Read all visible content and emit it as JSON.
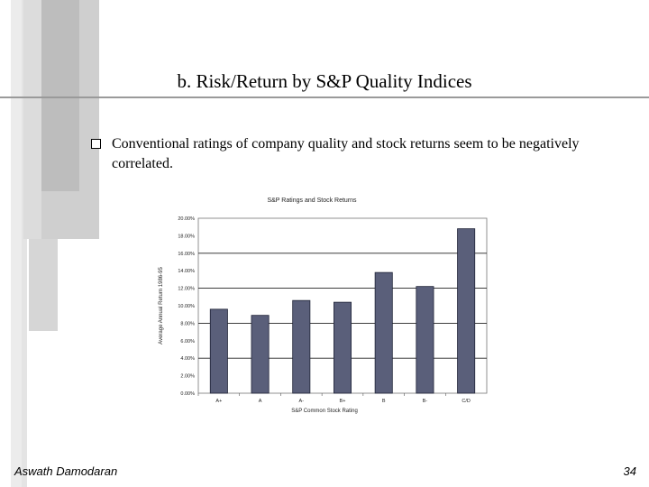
{
  "slide": {
    "title": "b. Risk/Return by S&P Quality Indices",
    "bullet": "Conventional ratings of company quality and stock returns seem to be negatively correlated.",
    "footer_author": "Aswath Damodaran",
    "page_number": "34"
  },
  "chart_data": {
    "type": "bar",
    "title": "S&P Ratings and Stock Returns",
    "xlabel": "S&P Common Stock Rating",
    "ylabel": "Average Annual Return 1986-95",
    "categories": [
      "A+",
      "A",
      "A-",
      "B+",
      "B",
      "B-",
      "C/D"
    ],
    "values": [
      9.6,
      8.9,
      10.6,
      10.4,
      13.8,
      12.2,
      18.8
    ],
    "ylim": [
      0,
      20
    ],
    "yticks": [
      "0.00%",
      "2.00%",
      "4.00%",
      "6.00%",
      "8.00%",
      "10.00%",
      "12.00%",
      "14.00%",
      "16.00%",
      "18.00%",
      "20.00%"
    ],
    "grid": true,
    "bar_color": "#5a5f7a"
  }
}
